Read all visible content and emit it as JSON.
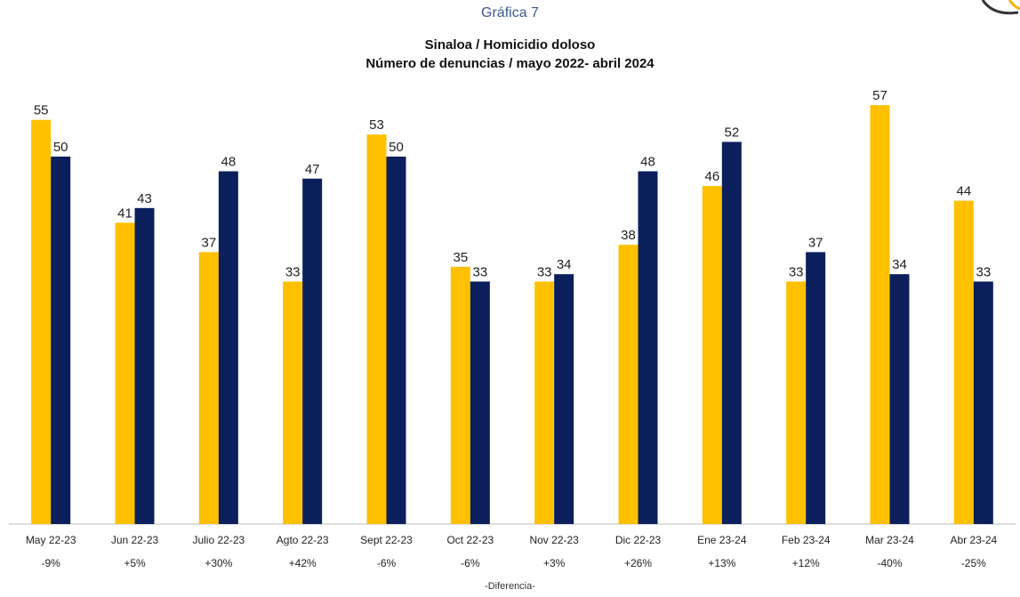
{
  "header": {
    "supertitle": "Gráfica 7",
    "title_line1": "Sinaloa / Homicidio doloso",
    "title_line2": "Número de denuncias / mayo 2022- abril 2024"
  },
  "footer": {
    "label": "-Diferencia-"
  },
  "colors": {
    "series1": "#FFC000",
    "series2": "#0B1F5C",
    "logo_accent": "#F2B600"
  },
  "chart_data": {
    "type": "bar",
    "categories": [
      "May 22-23",
      "Jun 22-23",
      "Julio 22-23",
      "Agto 22-23",
      "Sept 22-23",
      "Oct 22-23",
      "Nov 22-23",
      "Dic 22-23",
      "Ene 23-24",
      "Feb 23-24",
      "Mar 23-24",
      "Abr 23-24"
    ],
    "series": [
      {
        "values": [
          55,
          41,
          37,
          33,
          53,
          35,
          33,
          38,
          46,
          33,
          57,
          44
        ]
      },
      {
        "values": [
          50,
          43,
          48,
          47,
          50,
          33,
          34,
          48,
          52,
          37,
          34,
          33
        ]
      }
    ],
    "differences": [
      "-9%",
      "+5%",
      "+30%",
      "+42%",
      "-6%",
      "-6%",
      "+3%",
      "+26%",
      "+13%",
      "+12%",
      "-40%",
      "-25%"
    ],
    "ylim": [
      0,
      60
    ],
    "grid": false,
    "legend": "none"
  }
}
